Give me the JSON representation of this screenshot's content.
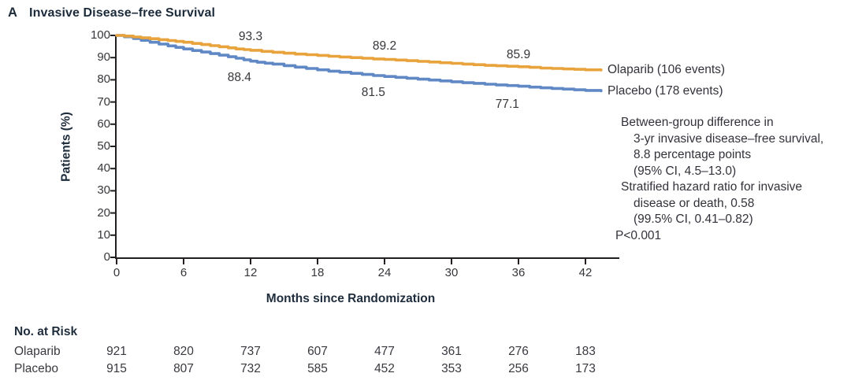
{
  "title": {
    "panel_letter": "A",
    "text": "Invasive Disease–free Survival"
  },
  "colors": {
    "olaparib": "#E8A33D",
    "placebo": "#5F88C5",
    "axis": "#231F20"
  },
  "chart_data": {
    "type": "line",
    "subtype": "kaplan-meier-step",
    "title": "Invasive Disease–free Survival",
    "xlabel": "Months since Randomization",
    "ylabel": "Patients (%)",
    "x_ticks": [
      0,
      6,
      12,
      18,
      24,
      30,
      36,
      42
    ],
    "y_ticks": [
      0,
      10,
      20,
      30,
      40,
      50,
      60,
      70,
      80,
      90,
      100
    ],
    "xlim": [
      0,
      45
    ],
    "ylim": [
      0,
      100
    ],
    "grid": false,
    "legend_position": "right-of-curve-end",
    "series": [
      {
        "name": "Olaparib",
        "legend": "Olaparib (106 events)",
        "color_key": "olaparib",
        "points": [
          [
            0,
            100
          ],
          [
            0.7,
            99.7
          ],
          [
            1.5,
            99.3
          ],
          [
            2.2,
            98.9
          ],
          [
            3,
            98.5
          ],
          [
            3.8,
            98.1
          ],
          [
            4.6,
            97.7
          ],
          [
            5.3,
            97.3
          ],
          [
            6,
            96.9
          ],
          [
            6.8,
            96.4
          ],
          [
            7.6,
            95.9
          ],
          [
            8.4,
            95.4
          ],
          [
            9.2,
            94.9
          ],
          [
            10,
            94.4
          ],
          [
            10.7,
            93.9
          ],
          [
            11.4,
            93.6
          ],
          [
            12,
            93.3
          ],
          [
            13,
            92.8
          ],
          [
            14,
            92.4
          ],
          [
            15,
            92
          ],
          [
            16,
            91.6
          ],
          [
            17,
            91.3
          ],
          [
            18,
            91
          ],
          [
            19,
            90.6
          ],
          [
            20,
            90.3
          ],
          [
            21,
            90
          ],
          [
            22,
            89.7
          ],
          [
            23,
            89.4
          ],
          [
            24,
            89.2
          ],
          [
            25,
            88.9
          ],
          [
            26,
            88.6
          ],
          [
            27,
            88.3
          ],
          [
            28,
            88
          ],
          [
            29,
            87.7
          ],
          [
            30,
            87.4
          ],
          [
            31,
            87.1
          ],
          [
            32,
            86.8
          ],
          [
            33,
            86.5
          ],
          [
            34,
            86.3
          ],
          [
            35,
            86.1
          ],
          [
            36,
            85.9
          ],
          [
            37,
            85.6
          ],
          [
            38,
            85.3
          ],
          [
            39,
            85.1
          ],
          [
            40,
            84.9
          ],
          [
            41,
            84.7
          ],
          [
            42,
            84.5
          ],
          [
            43.4,
            84.4
          ]
        ]
      },
      {
        "name": "Placebo",
        "legend": "Placebo (178 events)",
        "color_key": "placebo",
        "points": [
          [
            0,
            100
          ],
          [
            0.7,
            99.4
          ],
          [
            1.5,
            98.6
          ],
          [
            2.2,
            97.8
          ],
          [
            3,
            96.9
          ],
          [
            3.8,
            96.1
          ],
          [
            4.6,
            95.3
          ],
          [
            5.3,
            94.6
          ],
          [
            6,
            93.9
          ],
          [
            6.8,
            93.2
          ],
          [
            7.6,
            92.5
          ],
          [
            8.4,
            91.8
          ],
          [
            9.2,
            91.1
          ],
          [
            10,
            90.4
          ],
          [
            10.7,
            89.7
          ],
          [
            11.4,
            89
          ],
          [
            12,
            88.4
          ],
          [
            12.6,
            87.9
          ],
          [
            13.3,
            87.5
          ],
          [
            14,
            87.1
          ],
          [
            15,
            86.4
          ],
          [
            16,
            85.7
          ],
          [
            17,
            85.1
          ],
          [
            18,
            84.5
          ],
          [
            19,
            83.9
          ],
          [
            20,
            83.4
          ],
          [
            21,
            82.9
          ],
          [
            22,
            82.4
          ],
          [
            23,
            81.9
          ],
          [
            24,
            81.5
          ],
          [
            25,
            81.1
          ],
          [
            26,
            80.7
          ],
          [
            27,
            80.3
          ],
          [
            28,
            79.9
          ],
          [
            29,
            79.5
          ],
          [
            30,
            79.1
          ],
          [
            31,
            78.7
          ],
          [
            32,
            78.4
          ],
          [
            33,
            78
          ],
          [
            34,
            77.7
          ],
          [
            35,
            77.4
          ],
          [
            36,
            77.1
          ],
          [
            37,
            76.7
          ],
          [
            38,
            76.4
          ],
          [
            39,
            76.1
          ],
          [
            40,
            75.8
          ],
          [
            41,
            75.5
          ],
          [
            42,
            75.2
          ],
          [
            43.4,
            75
          ]
        ]
      }
    ],
    "point_labels": [
      {
        "text": "93.3",
        "series": "Olaparib",
        "month": 12,
        "pct": 93.3,
        "dy": -17
      },
      {
        "text": "89.2",
        "series": "Olaparib",
        "month": 24,
        "pct": 89.2,
        "dy": -16
      },
      {
        "text": "85.9",
        "series": "Olaparib",
        "month": 36,
        "pct": 85.9,
        "dy": -15
      },
      {
        "text": "88.4",
        "series": "Placebo",
        "month": 11,
        "pct": 88.4,
        "dy": 21
      },
      {
        "text": "81.5",
        "series": "Placebo",
        "month": 23,
        "pct": 81.5,
        "dy": 21
      },
      {
        "text": "77.1",
        "series": "Placebo",
        "month": 35,
        "pct": 77.1,
        "dy": 23
      }
    ]
  },
  "stats_annotation": {
    "lines": [
      {
        "text": "Between-group difference in",
        "indent": 1
      },
      {
        "text": "3-yr invasive disease–free survival,",
        "indent": 2
      },
      {
        "text": "8.8 percentage points",
        "indent": 2
      },
      {
        "text": "(95% CI, 4.5–13.0)",
        "indent": 2
      },
      {
        "text": "Stratified hazard ratio for invasive",
        "indent": 1
      },
      {
        "text": "disease or death, 0.58",
        "indent": 2
      },
      {
        "text": "(99.5% CI, 0.41–0.82)",
        "indent": 2
      },
      {
        "text": "P<0.001",
        "indent": 0
      }
    ]
  },
  "risk_table": {
    "header": "No. at Risk",
    "months": [
      0,
      6,
      12,
      18,
      24,
      30,
      36,
      42
    ],
    "rows": [
      {
        "label": "Olaparib",
        "values": [
          "921",
          "820",
          "737",
          "607",
          "477",
          "361",
          "276",
          "183"
        ]
      },
      {
        "label": "Placebo",
        "values": [
          "915",
          "807",
          "732",
          "585",
          "452",
          "353",
          "256",
          "173"
        ]
      }
    ]
  }
}
